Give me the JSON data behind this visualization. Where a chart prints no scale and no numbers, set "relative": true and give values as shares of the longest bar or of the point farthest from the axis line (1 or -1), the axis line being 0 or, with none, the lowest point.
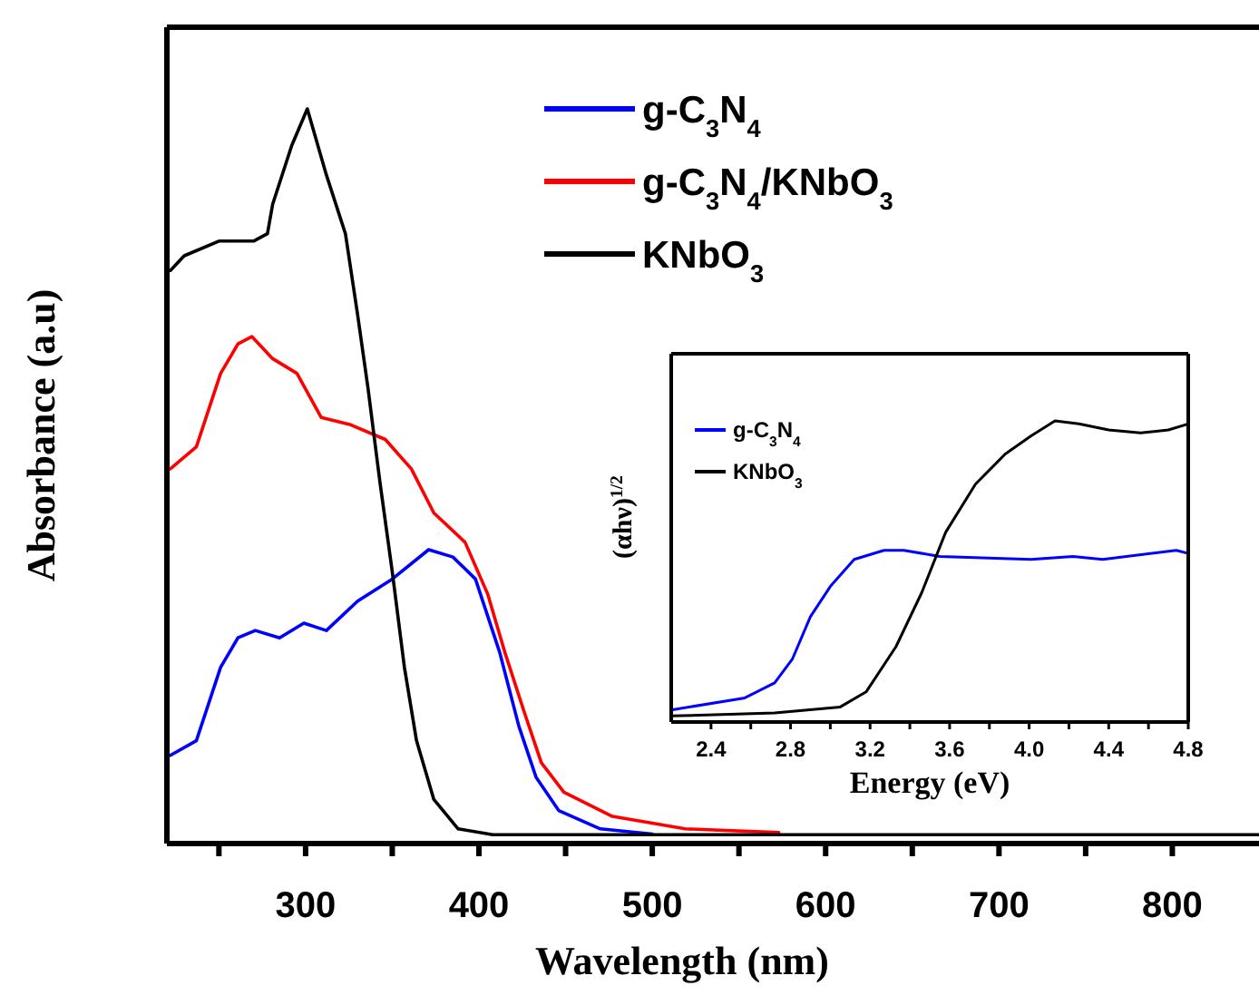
{
  "chart_data": [
    {
      "type": "line",
      "xlabel": "Wavelength (nm)",
      "ylabel": "Absorbance (a.u)",
      "relative": true,
      "xlim": [
        220,
        850
      ],
      "xticks": [
        {
          "value": 250,
          "label": null
        },
        300,
        {
          "value": 350,
          "label": null
        },
        400,
        {
          "value": 450,
          "label": null
        },
        500,
        {
          "value": 550,
          "label": null
        },
        600,
        {
          "value": 650,
          "label": null
        },
        700,
        {
          "value": 750,
          "label": null
        },
        800
      ],
      "legend": "top right",
      "line_style": "solid",
      "marker": "none",
      "series": [
        {
          "name": "g-C$_{3}$N$_{4}$",
          "color": "#0000ff",
          "x": [
            222,
            237,
            251,
            261,
            271,
            285,
            299,
            312,
            330,
            350,
            371,
            385,
            398,
            412,
            423,
            433,
            446,
            470,
            500
          ],
          "values": [
            0.12,
            0.14,
            0.24,
            0.28,
            0.29,
            0.28,
            0.3,
            0.29,
            0.33,
            0.36,
            0.4,
            0.39,
            0.36,
            0.26,
            0.16,
            0.09,
            0.045,
            0.02,
            0.013
          ]
        },
        {
          "name": "g-C$_{3}$N$_{4}$/KNbO$_{3}$",
          "color": "#ff0000",
          "x": [
            222,
            237,
            251,
            261,
            269,
            281,
            295,
            309,
            326,
            346,
            361,
            374,
            392,
            405,
            415,
            426,
            436,
            449,
            477,
            519,
            573
          ],
          "values": [
            0.51,
            0.54,
            0.64,
            0.68,
            0.69,
            0.66,
            0.64,
            0.58,
            0.57,
            0.55,
            0.51,
            0.45,
            0.41,
            0.34,
            0.26,
            0.18,
            0.11,
            0.07,
            0.037,
            0.02,
            0.015
          ]
        },
        {
          "name": "KNbO$_{3}$",
          "color": "#000000",
          "x": [
            222,
            230,
            250,
            270,
            278,
            281,
            292,
            301,
            312,
            323,
            330,
            336,
            343,
            350,
            357,
            364,
            374,
            388,
            408,
            600,
            850
          ],
          "values": [
            0.78,
            0.8,
            0.82,
            0.82,
            0.83,
            0.87,
            0.95,
            1.0,
            0.91,
            0.83,
            0.72,
            0.62,
            0.49,
            0.37,
            0.24,
            0.14,
            0.06,
            0.02,
            0.012,
            0.012,
            0.012
          ]
        }
      ]
    },
    {
      "type": "line",
      "xlabel": "Energy (eV)",
      "ylabel": "(αhν)$^{1/2}$",
      "relative": true,
      "xlim": [
        2.2,
        4.8
      ],
      "xticks": [
        2.4,
        {
          "value": 2.6,
          "label": null
        },
        2.8,
        {
          "value": 3.0,
          "label": null
        },
        3.2,
        {
          "value": 3.4,
          "label": null
        },
        3.6,
        {
          "value": 3.8,
          "label": null
        },
        {
          "value": 4.0,
          "label": "4.0"
        },
        {
          "value": 4.2,
          "label": null
        },
        4.4,
        {
          "value": 4.6,
          "label": null
        },
        4.8
      ],
      "legend": "top left",
      "line_style": "solid",
      "marker": "none",
      "series": [
        {
          "name": "g-C$_{3}$N$_{4}$",
          "color": "#0000ff",
          "x": [
            2.2,
            2.57,
            2.72,
            2.81,
            2.9,
            3.0,
            3.12,
            3.27,
            3.37,
            3.55,
            4.01,
            4.22,
            4.37,
            4.74,
            4.8
          ],
          "values": [
            0.04,
            0.08,
            0.13,
            0.21,
            0.35,
            0.45,
            0.54,
            0.57,
            0.57,
            0.55,
            0.54,
            0.55,
            0.54,
            0.57,
            0.56
          ]
        },
        {
          "name": "KNbO$_{3}$",
          "color": "#000000",
          "x": [
            2.2,
            2.72,
            3.05,
            3.18,
            3.33,
            3.46,
            3.58,
            3.73,
            3.88,
            4.01,
            4.13,
            4.25,
            4.4,
            4.56,
            4.7,
            4.8
          ],
          "values": [
            0.02,
            0.03,
            0.05,
            0.1,
            0.25,
            0.43,
            0.63,
            0.79,
            0.89,
            0.95,
            1.0,
            0.99,
            0.97,
            0.96,
            0.97,
            0.99
          ]
        }
      ]
    }
  ]
}
